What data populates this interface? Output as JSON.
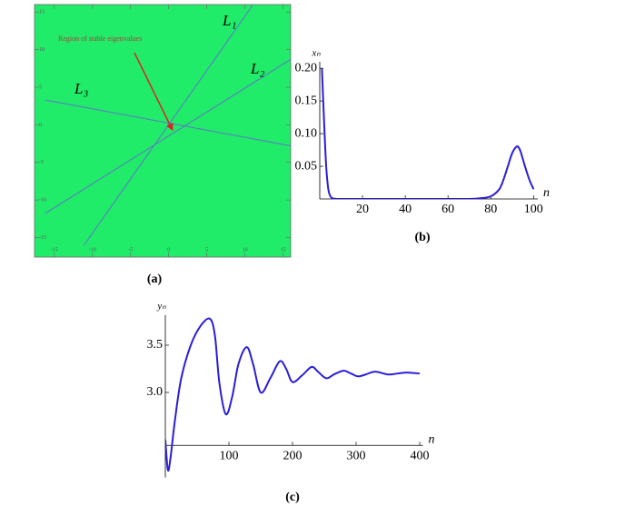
{
  "chart_data": [
    {
      "type": "line",
      "caption": "(a)",
      "background": "#20ec6a",
      "frame": true,
      "xlim": [
        -17.6,
        16
      ],
      "ylim": [
        -17.6,
        16
      ],
      "xticks": [
        -15,
        -10,
        -5,
        0,
        5,
        10,
        15
      ],
      "yticks": [
        -15,
        -10,
        -5,
        0,
        5,
        10,
        15
      ],
      "annotation": "Region of stable eigenvalues",
      "annotation_color": "#b03a3a",
      "arrow": {
        "color": "#e02020",
        "x": [
          -4.5,
          0.5
        ],
        "y": [
          9.6,
          -0.7
        ]
      },
      "series": [
        {
          "name": "L₁",
          "color": "#5b7fbf",
          "x": [
            -11.1,
            11
          ],
          "y": [
            -16,
            15.9
          ]
        },
        {
          "name": "L₂",
          "color": "#5b7fbf",
          "x": [
            -16.2,
            16
          ],
          "y": [
            -11.8,
            8.7
          ]
        },
        {
          "name": "L₃",
          "color": "#5b7fbf",
          "x": [
            -16.2,
            16
          ],
          "y": [
            3.3,
            -2.8
          ]
        }
      ]
    },
    {
      "type": "line",
      "caption": "(b)",
      "xlabel": "n",
      "ylabel": "xₙ",
      "xlim": [
        0,
        102
      ],
      "ylim": [
        0,
        0.21
      ],
      "xticks": [
        20,
        40,
        60,
        80,
        100
      ],
      "yticks": [
        0.05,
        {
          "value": 0.1,
          "label": "0.10"
        },
        0.15,
        {
          "value": 0.2,
          "label": "0.20"
        }
      ],
      "series": [
        {
          "color": "#2a1ed8",
          "x": [
            1,
            2,
            3,
            4,
            5,
            6,
            8,
            10,
            20,
            40,
            60,
            70,
            75,
            80,
            84,
            86,
            88,
            90,
            92,
            93,
            94,
            96,
            98,
            100
          ],
          "y": [
            0.2,
            0.12,
            0.05,
            0.015,
            0.004,
            0.001,
            0,
            0,
            0,
            0,
            0,
            0,
            0.001,
            0.004,
            0.015,
            0.03,
            0.05,
            0.07,
            0.08,
            0.079,
            0.072,
            0.05,
            0.03,
            0.015
          ]
        }
      ]
    },
    {
      "type": "line",
      "caption": "(c)",
      "xlabel": "n",
      "ylabel": "yₙ",
      "xlim": [
        0,
        405
      ],
      "ylim": [
        2.1,
        3.82
      ],
      "x_axis_at": 2.44,
      "xticks": [
        100,
        200,
        300,
        400
      ],
      "yticks": [
        {
          "value": 3,
          "label": "3.0"
        },
        3.5
      ],
      "series": [
        {
          "color": "#2a1ed8",
          "x": [
            0,
            4,
            8,
            15,
            25,
            40,
            55,
            70,
            78,
            85,
            95,
            105,
            115,
            128,
            138,
            150,
            165,
            180,
            190,
            200,
            215,
            230,
            240,
            253,
            265,
            280,
            292,
            303,
            315,
            330,
            350,
            365,
            380,
            400
          ],
          "y": [
            2.5,
            2.18,
            2.3,
            2.7,
            3.15,
            3.5,
            3.7,
            3.78,
            3.6,
            3.1,
            2.77,
            2.95,
            3.3,
            3.48,
            3.3,
            3.0,
            3.15,
            3.33,
            3.25,
            3.11,
            3.18,
            3.27,
            3.22,
            3.15,
            3.19,
            3.23,
            3.2,
            3.17,
            3.19,
            3.22,
            3.19,
            3.2,
            3.21,
            3.2
          ]
        }
      ]
    }
  ]
}
